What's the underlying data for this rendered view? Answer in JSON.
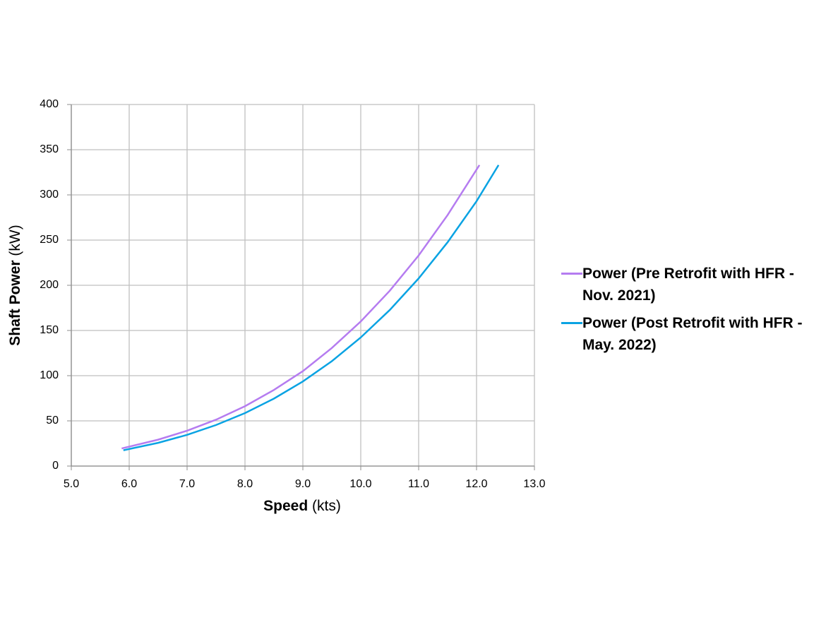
{
  "chart_data": {
    "type": "line",
    "x_label": "Speed (kts)",
    "y_label": "Shaft Power (kW)",
    "xlim": [
      5.0,
      13.0
    ],
    "xticks": [
      {
        "value": 5,
        "label": "5.0"
      },
      {
        "value": 6,
        "label": "6.0"
      },
      {
        "value": 7,
        "label": "7.0"
      },
      {
        "value": 8,
        "label": "8.0"
      },
      {
        "value": 9,
        "label": "9.0"
      },
      {
        "value": 10,
        "label": "10.0"
      },
      {
        "value": 11,
        "label": "11.0"
      },
      {
        "value": 12,
        "label": "12.0"
      },
      {
        "value": 13,
        "label": "13.0"
      }
    ],
    "ylim": [
      0,
      400
    ],
    "yticks": [
      0,
      50,
      100,
      150,
      200,
      250,
      300,
      350,
      400
    ],
    "grid": true,
    "legend": "right",
    "series": [
      {
        "name": "Power (Pre Retrofit with HFR - Nov. 2021)",
        "color": "#b57cf0",
        "x": [
          5.87,
          6.5,
          7,
          7.5,
          8,
          8.5,
          9,
          9.5,
          10,
          10.5,
          11,
          11.5,
          12.05
        ],
        "values": [
          19.5,
          29.2,
          39.1,
          51.3,
          66.2,
          84.2,
          105,
          130.6,
          160,
          193.9,
          233,
          277.7,
          333
        ]
      },
      {
        "name": "Power (Post Retrofit with HFR - May. 2022)",
        "color": "#0aa3e3",
        "x": [
          5.9,
          6.5,
          7,
          7.5,
          8,
          8.5,
          9,
          9.5,
          10,
          10.5,
          11,
          11.5,
          12,
          12.38
        ],
        "values": [
          17.5,
          25.7,
          34.5,
          45.4,
          58.6,
          74.6,
          93.6,
          116,
          142.3,
          172.6,
          207.6,
          247.6,
          293,
          333
        ]
      }
    ]
  }
}
